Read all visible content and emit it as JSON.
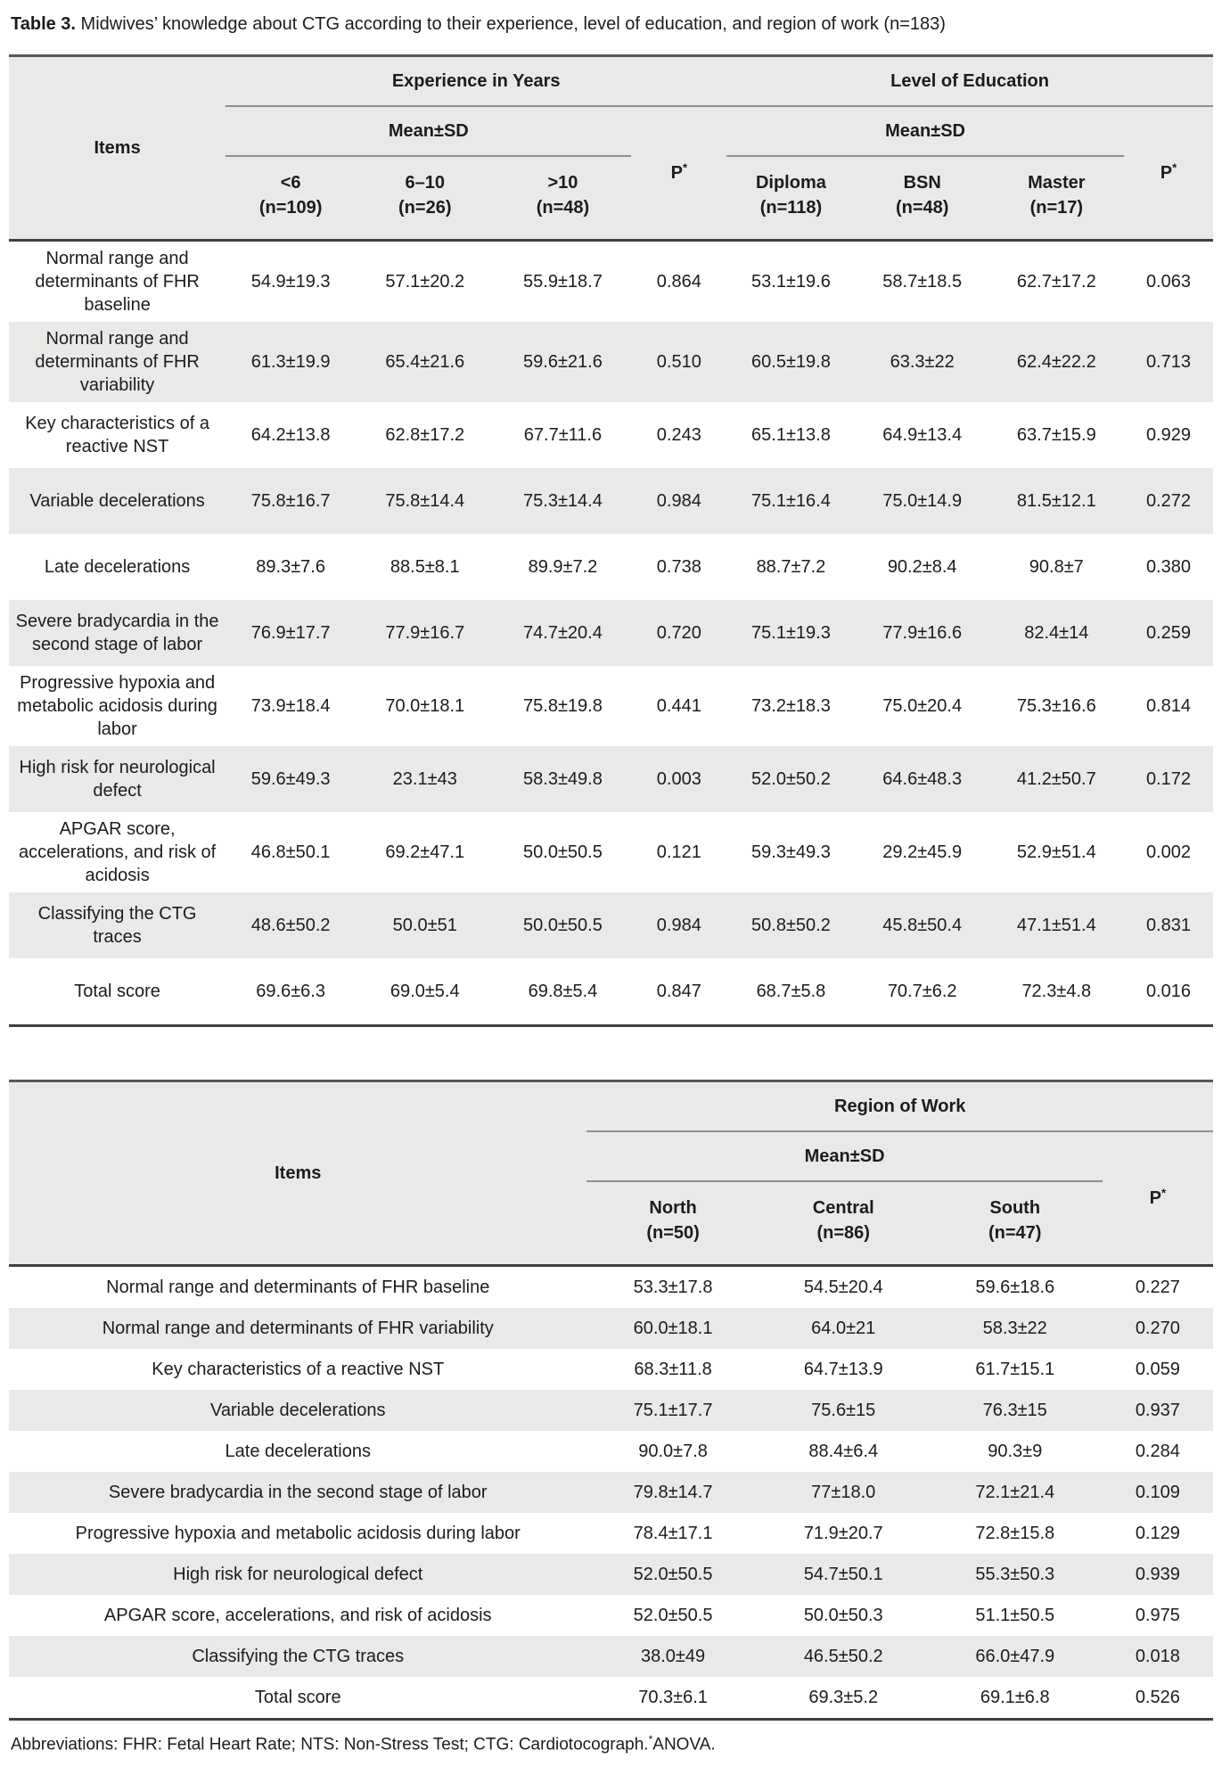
{
  "title": {
    "label": "Table 3.",
    "text": " Midwives’ knowledge about CTG according to their experience, level of education, and region of work (n=183)"
  },
  "p_label": "P",
  "p_sup": "*",
  "meansd_label": "Mean±SD",
  "items_label": "Items",
  "table1": {
    "group1": {
      "title": "Experience in Years",
      "columns": [
        {
          "name": "<6",
          "n": "(n=109)"
        },
        {
          "name": "6–10",
          "n": "(n=26)"
        },
        {
          "name": ">10",
          "n": "(n=48)"
        }
      ]
    },
    "group2": {
      "title": "Level of Education",
      "columns": [
        {
          "name": "Diploma",
          "n": "(n=118)"
        },
        {
          "name": "BSN",
          "n": "(n=48)"
        },
        {
          "name": "Master",
          "n": "(n=17)"
        }
      ]
    },
    "rows": [
      {
        "item": "Normal range and determinants of FHR baseline",
        "values": [
          "54.9±19.3",
          "57.1±20.2",
          "55.9±18.7",
          "0.864",
          "53.1±19.6",
          "58.7±18.5",
          "62.7±17.2",
          "0.063"
        ]
      },
      {
        "item": "Normal range and determinants of FHR variability",
        "values": [
          "61.3±19.9",
          "65.4±21.6",
          "59.6±21.6",
          "0.510",
          "60.5±19.8",
          "63.3±22",
          "62.4±22.2",
          "0.713"
        ]
      },
      {
        "item": "Key characteristics of a reactive NST",
        "values": [
          "64.2±13.8",
          "62.8±17.2",
          "67.7±11.6",
          "0.243",
          "65.1±13.8",
          "64.9±13.4",
          "63.7±15.9",
          "0.929"
        ]
      },
      {
        "item": "Variable decelerations",
        "values": [
          "75.8±16.7",
          "75.8±14.4",
          "75.3±14.4",
          "0.984",
          "75.1±16.4",
          "75.0±14.9",
          "81.5±12.1",
          "0.272"
        ]
      },
      {
        "item": "Late decelerations",
        "values": [
          "89.3±7.6",
          "88.5±8.1",
          "89.9±7.2",
          "0.738",
          "88.7±7.2",
          "90.2±8.4",
          "90.8±7",
          "0.380"
        ]
      },
      {
        "item": "Severe bradycardia in the second stage of labor",
        "values": [
          "76.9±17.7",
          "77.9±16.7",
          "74.7±20.4",
          "0.720",
          "75.1±19.3",
          "77.9±16.6",
          "82.4±14",
          "0.259"
        ]
      },
      {
        "item": "Progressive hypoxia and metabolic acidosis during labor",
        "values": [
          "73.9±18.4",
          "70.0±18.1",
          "75.8±19.8",
          "0.441",
          "73.2±18.3",
          "75.0±20.4",
          "75.3±16.6",
          "0.814"
        ]
      },
      {
        "item": "High risk for neurological defect",
        "values": [
          "59.6±49.3",
          "23.1±43",
          "58.3±49.8",
          "0.003",
          "52.0±50.2",
          "64.6±48.3",
          "41.2±50.7",
          "0.172"
        ]
      },
      {
        "item": "APGAR score, accelerations, and risk of acidosis",
        "values": [
          "46.8±50.1",
          "69.2±47.1",
          "50.0±50.5",
          "0.121",
          "59.3±49.3",
          "29.2±45.9",
          "52.9±51.4",
          "0.002"
        ]
      },
      {
        "item": "Classifying the CTG traces",
        "values": [
          "48.6±50.2",
          "50.0±51",
          "50.0±50.5",
          "0.984",
          "50.8±50.2",
          "45.8±50.4",
          "47.1±51.4",
          "0.831"
        ]
      },
      {
        "item": "Total score",
        "values": [
          "69.6±6.3",
          "69.0±5.4",
          "69.8±5.4",
          "0.847",
          "68.7±5.8",
          "70.7±6.2",
          "72.3±4.8",
          "0.016"
        ]
      }
    ]
  },
  "table2": {
    "group": {
      "title": "Region of Work",
      "columns": [
        {
          "name": "North",
          "n": "(n=50)"
        },
        {
          "name": "Central",
          "n": "(n=86)"
        },
        {
          "name": "South",
          "n": "(n=47)"
        }
      ]
    },
    "rows": [
      {
        "item": "Normal range and determinants of FHR baseline",
        "values": [
          "53.3±17.8",
          "54.5±20.4",
          "59.6±18.6",
          "0.227"
        ]
      },
      {
        "item": "Normal range and determinants of FHR variability",
        "values": [
          "60.0±18.1",
          "64.0±21",
          "58.3±22",
          "0.270"
        ]
      },
      {
        "item": "Key characteristics of a reactive NST",
        "values": [
          "68.3±11.8",
          "64.7±13.9",
          "61.7±15.1",
          "0.059"
        ]
      },
      {
        "item": "Variable decelerations",
        "values": [
          "75.1±17.7",
          "75.6±15",
          "76.3±15",
          "0.937"
        ]
      },
      {
        "item": "Late decelerations",
        "values": [
          "90.0±7.8",
          "88.4±6.4",
          "90.3±9",
          "0.284"
        ]
      },
      {
        "item": "Severe bradycardia in the second stage of labor",
        "values": [
          "79.8±14.7",
          "77±18.0",
          "72.1±21.4",
          "0.109"
        ]
      },
      {
        "item": "Progressive hypoxia and metabolic acidosis during labor",
        "values": [
          "78.4±17.1",
          "71.9±20.7",
          "72.8±15.8",
          "0.129"
        ]
      },
      {
        "item": "High risk for neurological defect",
        "values": [
          "52.0±50.5",
          "54.7±50.1",
          "55.3±50.3",
          "0.939"
        ]
      },
      {
        "item": "APGAR score, accelerations, and risk of acidosis",
        "values": [
          "52.0±50.5",
          "50.0±50.3",
          "51.1±50.5",
          "0.975"
        ]
      },
      {
        "item": "Classifying the CTG traces",
        "values": [
          "38.0±49",
          "46.5±50.2",
          "66.0±47.9",
          "0.018"
        ]
      },
      {
        "item": "Total score",
        "values": [
          "70.3±6.1",
          "69.3±5.2",
          "69.1±6.8",
          "0.526"
        ]
      }
    ]
  },
  "footnote": {
    "text": "Abbreviations: FHR: Fetal Heart Rate; NTS: Non-Stress Test; CTG: Cardiotocograph.",
    "sup": "*",
    "suffix": "ANOVA."
  }
}
